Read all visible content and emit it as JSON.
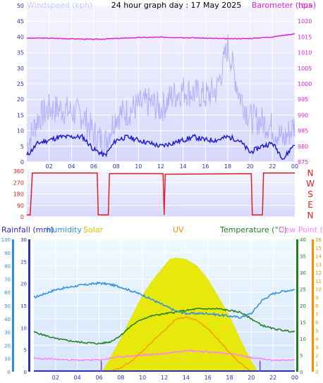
{
  "chart_data": [
    {
      "panel": "wind-barometer",
      "type": "line",
      "title": "24 hour graph day : 17 May 2025",
      "left_axis_label": "Windspeed (kph)",
      "right_axis_label": "Barometer (hpa)",
      "left_ticks": [
        "0",
        "5",
        "10",
        "15",
        "20",
        "25",
        "30",
        "35",
        "40",
        "45",
        "50"
      ],
      "right_ticks": [
        "975",
        "980",
        "985",
        "990",
        "995",
        "1000",
        "1005",
        "1010",
        "1015",
        "1020",
        "1025"
      ],
      "x_ticks": [
        "02",
        "04",
        "06",
        "08",
        "10",
        "12",
        "14",
        "16",
        "18",
        "20",
        "22",
        "00"
      ],
      "ylim_left": [
        0,
        50
      ],
      "ylim_right": [
        975,
        1025
      ],
      "colors": {
        "gust": "#b0b0ff",
        "average": "#2020d0",
        "barometer": "#e020e0"
      },
      "series": [
        {
          "key": "barometer",
          "x": [
            0,
            2,
            4,
            6,
            8,
            10,
            12,
            14,
            16,
            18,
            20,
            22,
            24
          ],
          "values": [
            1014.6,
            1014.6,
            1014.4,
            1014.2,
            1014.5,
            1014.8,
            1014.9,
            1014.8,
            1014.6,
            1014.4,
            1014.5,
            1015.0,
            1016.0
          ]
        },
        {
          "key": "average",
          "x": [
            0,
            1,
            2,
            3,
            4,
            5,
            6,
            7,
            8,
            9,
            10,
            11,
            12,
            13,
            14,
            15,
            16,
            17,
            18,
            19,
            20,
            21,
            22,
            23,
            24
          ],
          "values": [
            2,
            6,
            7,
            8,
            8,
            8,
            4,
            2,
            7,
            8,
            7,
            6,
            5,
            6,
            7,
            8,
            7,
            7,
            8,
            7,
            3,
            5,
            6,
            1,
            6
          ]
        },
        {
          "key": "gust",
          "x": [
            0,
            1,
            2,
            3,
            4,
            5,
            6,
            7,
            8,
            9,
            10,
            11,
            12,
            13,
            14,
            15,
            16,
            17,
            18,
            19,
            20,
            21,
            22,
            23,
            24
          ],
          "values": [
            5,
            14,
            17,
            17,
            16,
            15,
            9,
            6,
            15,
            16,
            18,
            19,
            17,
            21,
            23,
            22,
            21,
            23,
            37,
            22,
            14,
            13,
            11,
            7,
            12
          ]
        }
      ]
    },
    {
      "panel": "wind-direction",
      "type": "line",
      "left_ticks": [
        "0",
        "90",
        "180",
        "270",
        "360"
      ],
      "compass_labels": [
        "N",
        "W",
        "S",
        "E",
        "N"
      ],
      "ylim": [
        0,
        360
      ],
      "color": "#e02020",
      "series": [
        {
          "key": "direction",
          "x": [
            0,
            0.3,
            0.5,
            6.3,
            6.4,
            7.3,
            7.4,
            12.2,
            12.3,
            12.4,
            20.1,
            20.2,
            21.1,
            21.2,
            24
          ],
          "values": [
            15,
            15,
            345,
            345,
            15,
            15,
            340,
            340,
            15,
            335,
            340,
            15,
            15,
            345,
            345
          ]
        }
      ]
    },
    {
      "panel": "rain-temperature",
      "type": "line",
      "labels": {
        "rainfall": "Rainfall (mm)",
        "humidity": "Humidity",
        "solar": "Solar",
        "uv": "UV",
        "temperature": "Temperature (°C)",
        "dewpoint": "Dew Point (°C)"
      },
      "humidity_ticks": [
        "0",
        "10",
        "20",
        "30",
        "40",
        "50",
        "60",
        "70",
        "80",
        "90",
        "100"
      ],
      "rain_ticks": [
        "0",
        "5",
        "10",
        "15",
        "20",
        "25",
        "30"
      ],
      "temp_ticks": [
        "0",
        "5",
        "10",
        "15",
        "20",
        "25",
        "30",
        "35",
        "40"
      ],
      "uv_ticks": [
        "0",
        "1",
        "2",
        "3",
        "4",
        "5",
        "6",
        "7",
        "8",
        "9",
        "10",
        "11",
        "12",
        "13",
        "14",
        "15",
        "16"
      ],
      "x_ticks": [
        "02",
        "04",
        "06",
        "08",
        "10",
        "12",
        "14",
        "16",
        "18",
        "20",
        "22",
        "00"
      ],
      "colors": {
        "rainfall": "#3030c0",
        "humidity": "#3090e0",
        "solar": "#e8e800",
        "uv": "#ff8c00",
        "temperature": "#208020",
        "dewpoint": "#ff80ff"
      },
      "series": [
        {
          "key": "humidity",
          "x": [
            0,
            2,
            4,
            6,
            7,
            8,
            10,
            11,
            12,
            13,
            14,
            15,
            16,
            17,
            18,
            19,
            20,
            21,
            22,
            23,
            24
          ],
          "values": [
            56,
            62,
            65,
            67,
            66,
            64,
            58,
            54,
            50,
            46,
            44,
            44,
            44,
            43,
            42,
            41,
            44,
            54,
            59,
            61,
            62
          ]
        },
        {
          "key": "temperature",
          "x": [
            0,
            2,
            4,
            6,
            7,
            8,
            9,
            10,
            11,
            12,
            13,
            14,
            15,
            16,
            17,
            18,
            19,
            20,
            21,
            22,
            23,
            24
          ],
          "values": [
            12,
            10,
            9,
            8.5,
            9,
            11,
            14,
            16,
            17,
            17.5,
            18,
            18.5,
            19,
            19,
            19,
            18.5,
            18,
            16,
            14,
            13,
            12.5,
            12
          ]
        },
        {
          "key": "dewpoint",
          "x": [
            0,
            2,
            4,
            6,
            8,
            10,
            12,
            14,
            16,
            18,
            20,
            22,
            24
          ],
          "values": [
            4,
            3.8,
            3.5,
            3.6,
            4.5,
            5,
            5.5,
            6.5,
            6,
            5.5,
            4.2,
            3.5,
            3.5
          ]
        },
        {
          "key": "solar",
          "x": [
            6.3,
            7,
            8,
            9,
            10,
            11,
            12,
            12.5,
            13,
            14,
            15,
            16,
            17,
            18,
            19,
            19.5,
            20,
            20.6
          ],
          "values": [
            0,
            100,
            250,
            420,
            580,
            700,
            800,
            850,
            860,
            850,
            800,
            700,
            560,
            420,
            240,
            160,
            80,
            0
          ],
          "ylim": [
            0,
            1000
          ]
        },
        {
          "key": "uv",
          "x": [
            7,
            8,
            9,
            10,
            11,
            12,
            13,
            14,
            15,
            16,
            17,
            18,
            19,
            20
          ],
          "values": [
            0,
            0.5,
            1.3,
            2.5,
            3.8,
            5,
            6.3,
            6.6,
            6.2,
            5.2,
            3.8,
            2.3,
            1,
            0
          ]
        },
        {
          "key": "rainfall",
          "x": [
            6.2,
            20.8
          ],
          "values": [
            2.5,
            2.5
          ]
        }
      ]
    }
  ]
}
